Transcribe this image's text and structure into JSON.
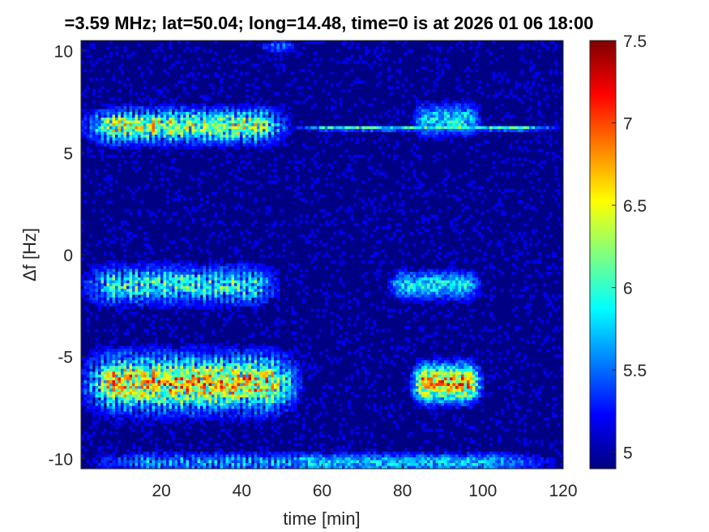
{
  "chart_data": {
    "type": "heatmap",
    "title": "=3.59 MHz;  lat=50.04; long=14.48, time=0 is at 2026 01 06 18:00",
    "xlabel": "time [min]",
    "ylabel": "Δf [Hz]",
    "xlim": [
      0,
      120
    ],
    "ylim": [
      -10.5,
      10.5
    ],
    "x_ticks": [
      20,
      40,
      60,
      80,
      100,
      120
    ],
    "y_ticks": [
      -10,
      -5,
      0,
      5,
      10
    ],
    "colorbar": {
      "colormap": "jet",
      "clim": [
        4.9,
        7.5
      ],
      "ticks": [
        "5",
        "5.5",
        "6",
        "6.5",
        "7",
        "7.5"
      ]
    },
    "features": [
      {
        "df": 6.3,
        "t_start": 0,
        "t_end": 52,
        "level": 6.6,
        "width": 0.8
      },
      {
        "df": 6.2,
        "t_start": 52,
        "t_end": 120,
        "level": 6.1,
        "width": 0.12
      },
      {
        "df": 6.6,
        "t_start": 82,
        "t_end": 100,
        "level": 5.9,
        "width": 0.8
      },
      {
        "df": -1.5,
        "t_start": 0,
        "t_end": 50,
        "level": 6.2,
        "width": 0.9
      },
      {
        "df": -1.5,
        "t_start": 76,
        "t_end": 100,
        "level": 5.9,
        "width": 0.7
      },
      {
        "df": -6.3,
        "t_start": 0,
        "t_end": 55,
        "level": 6.9,
        "width": 1.3
      },
      {
        "df": -6.3,
        "t_start": 82,
        "t_end": 100,
        "level": 6.9,
        "width": 0.9
      },
      {
        "df": -10.2,
        "t_start": 0,
        "t_end": 120,
        "level": 5.8,
        "width": 0.5
      },
      {
        "df": 10.2,
        "t_start": 44,
        "t_end": 54,
        "level": 5.6,
        "width": 0.3
      }
    ]
  }
}
